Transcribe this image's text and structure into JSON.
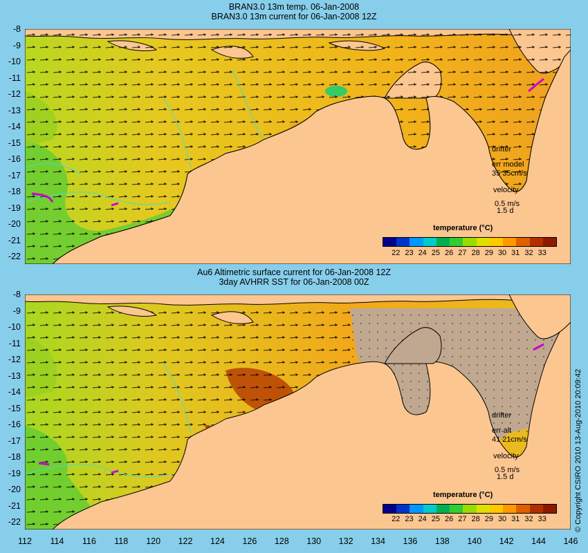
{
  "panels": [
    {
      "title_line1": "BRAN3.0 13m temp. 06-Jan-2008",
      "title_line2": "BRAN3.0 13m current for 06-Jan-2008 12Z",
      "annot_drifter": "drifter",
      "annot_err": "err model",
      "annot_speed": "35 35cm/s",
      "annot_velocity": "velocity",
      "annot_scale": "0.5 m/s",
      "annot_days": "1.5 d"
    },
    {
      "title_line1": "Au6 Altimetric surface current for 06-Jan-2008 12Z",
      "title_line2": "3day AVHRR SST for 06-Jan-2008 00Z",
      "annot_drifter": "drifter",
      "annot_err": "err alt",
      "annot_speed": "41 21cm/s",
      "annot_velocity": "velocity",
      "annot_scale": "0.5 m/s",
      "annot_days": "1.5 d"
    }
  ],
  "colorbar": {
    "title": "temperature (°C)",
    "ticks": [
      "22",
      "23",
      "24",
      "25",
      "26",
      "27",
      "28",
      "29",
      "30",
      "31",
      "32",
      "33"
    ],
    "colors": [
      "#00008b",
      "#0033cc",
      "#0099ff",
      "#00cccc",
      "#00b050",
      "#33cc33",
      "#99dd00",
      "#e0e000",
      "#ffc800",
      "#ff9900",
      "#e06000",
      "#b03000",
      "#8b1a00"
    ]
  },
  "y_axis_labels": [
    "-8",
    "-9",
    "-10",
    "-11",
    "-12",
    "-13",
    "-14",
    "-15",
    "-16",
    "-17",
    "-18",
    "-19",
    "-20",
    "-21",
    "-22"
  ],
  "x_axis_labels": [
    "112",
    "114",
    "116",
    "118",
    "120",
    "122",
    "124",
    "126",
    "128",
    "130",
    "132",
    "134",
    "136",
    "138",
    "140",
    "142",
    "144",
    "146"
  ],
  "copyright": "© Copyright CSIRO 2010   13-Aug-2010 20:09:42",
  "colors": {
    "background": "#87ceeb",
    "land": "#fcc690",
    "ocean_warm": "#f2b21a",
    "ocean_mid": "#e8d21a",
    "ocean_cool": "#66cc33",
    "cloud": "#c0a890",
    "contour": "#40e0d0"
  }
}
